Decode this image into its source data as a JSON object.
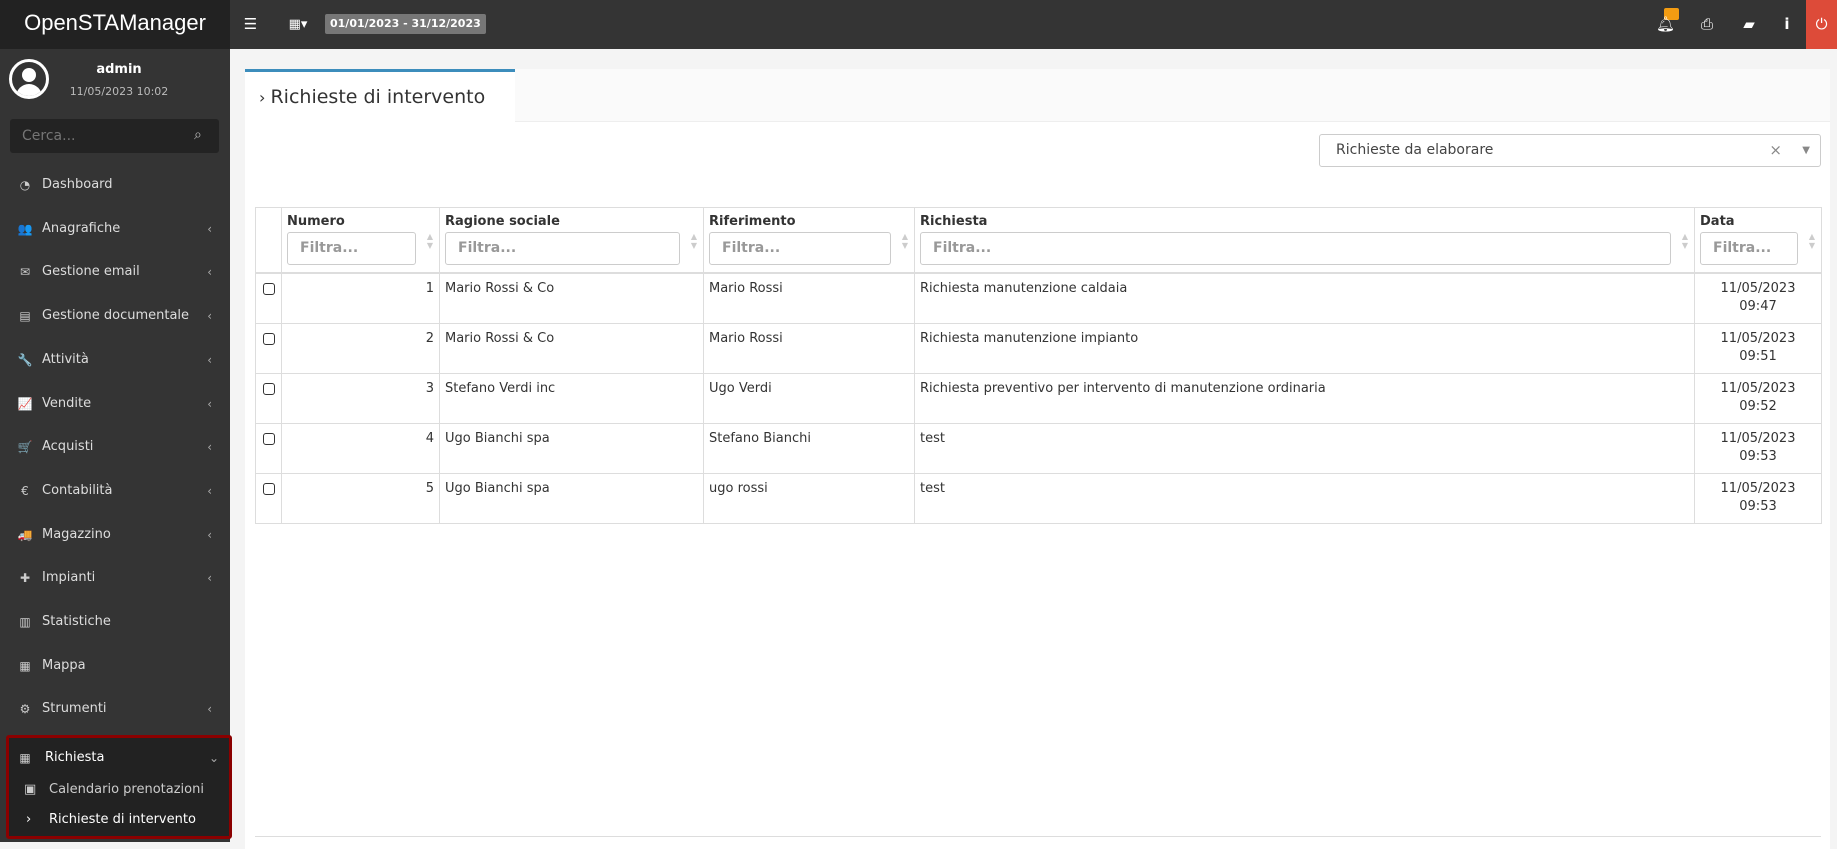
{
  "app": {
    "title": "OpenSTAManager",
    "date_range": "01/01/2023 - 31/12/2023"
  },
  "icons": {
    "menu": "bars-icon",
    "calendar": "calendar-icon",
    "bell": "bell-icon",
    "print": "print-icon",
    "book": "book-icon",
    "info": "info-icon",
    "power": "power-icon"
  },
  "user": {
    "name": "admin",
    "datetime": "11/05/2023 10:02"
  },
  "sidebar": {
    "search_placeholder": "Cerca...",
    "items": [
      {
        "label": "Dashboard",
        "icon": "dashboard-icon",
        "glyph": "◔",
        "chevron": ""
      },
      {
        "label": "Anagrafiche",
        "icon": "users-icon",
        "glyph": "👥",
        "chevron": "‹"
      },
      {
        "label": "Gestione email",
        "icon": "envelope-icon",
        "glyph": "✉",
        "chevron": "‹"
      },
      {
        "label": "Gestione documentale",
        "icon": "file-icon",
        "glyph": "▤",
        "chevron": "‹"
      },
      {
        "label": "Attività",
        "icon": "wrench-icon",
        "glyph": "🔧",
        "chevron": "‹"
      },
      {
        "label": "Vendite",
        "icon": "line-chart-icon",
        "glyph": "📈",
        "chevron": "‹"
      },
      {
        "label": "Acquisti",
        "icon": "cart-icon",
        "glyph": "🛒",
        "chevron": "‹"
      },
      {
        "label": "Contabilità",
        "icon": "euro-icon",
        "glyph": "€",
        "chevron": "‹"
      },
      {
        "label": "Magazzino",
        "icon": "truck-icon",
        "glyph": "🚚",
        "chevron": "‹"
      },
      {
        "label": "Impianti",
        "icon": "puzzle-icon",
        "glyph": "✚",
        "chevron": "‹"
      },
      {
        "label": "Statistiche",
        "icon": "bar-chart-icon",
        "glyph": "▥",
        "chevron": ""
      },
      {
        "label": "Mappa",
        "icon": "map-icon",
        "glyph": "▦",
        "chevron": ""
      },
      {
        "label": "Strumenti",
        "icon": "cog-icon",
        "glyph": "⚙",
        "chevron": "‹"
      }
    ],
    "active_group": {
      "label": "Richiesta",
      "chevron": "⌄",
      "children": [
        {
          "label": "Calendario prenotazioni",
          "glyph": "📅"
        },
        {
          "label": "Richieste di intervento",
          "glyph": "›"
        }
      ]
    }
  },
  "main": {
    "tab_title": "Richieste di intervento",
    "filter_select": "Richieste da elaborare",
    "table": {
      "filter_placeholder": "Filtra...",
      "columns": [
        "Numero",
        "Ragione sociale",
        "Riferimento",
        "Richiesta",
        "Data"
      ],
      "rows": [
        {
          "numero": "1",
          "ragione": "Mario Rossi & Co",
          "riferimento": "Mario Rossi",
          "richiesta": "Richiesta manutenzione caldaia",
          "data": "11/05/2023",
          "ora": "09:47"
        },
        {
          "numero": "2",
          "ragione": "Mario Rossi & Co",
          "riferimento": "Mario Rossi",
          "richiesta": "Richiesta manutenzione impianto",
          "data": "11/05/2023",
          "ora": "09:51"
        },
        {
          "numero": "3",
          "ragione": "Stefano Verdi inc",
          "riferimento": "Ugo Verdi",
          "richiesta": "Richiesta preventivo per intervento di manutenzione ordinaria",
          "data": "11/05/2023",
          "ora": "09:52"
        },
        {
          "numero": "4",
          "ragione": "Ugo Bianchi spa",
          "riferimento": "Stefano Bianchi",
          "richiesta": "test",
          "data": "11/05/2023",
          "ora": "09:53"
        },
        {
          "numero": "5",
          "ragione": "Ugo Bianchi spa",
          "riferimento": "ugo rossi",
          "richiesta": "test",
          "data": "11/05/2023",
          "ora": "09:53"
        }
      ]
    }
  }
}
